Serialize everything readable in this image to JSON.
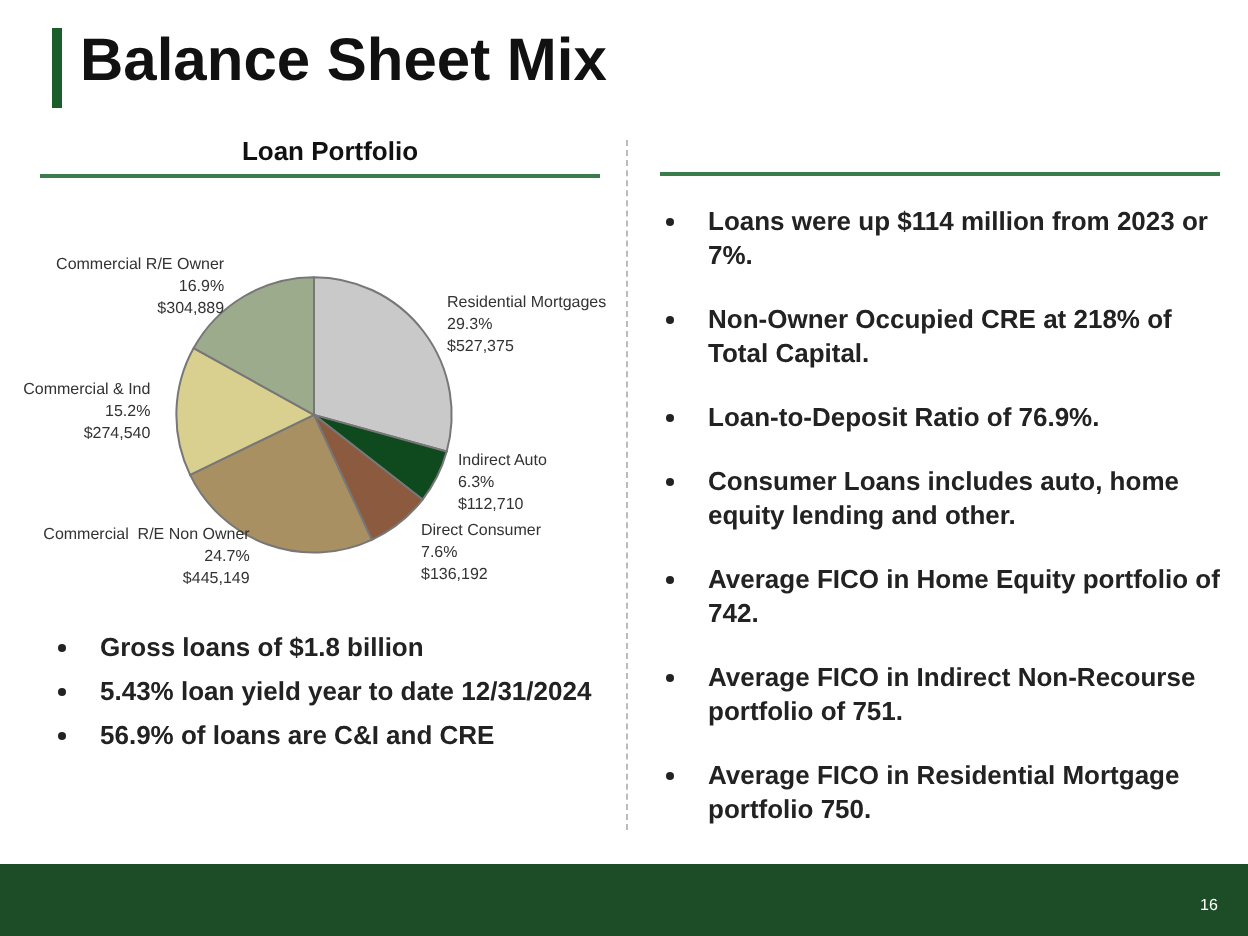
{
  "chart_data": {
    "type": "pie",
    "title": "Balance Sheet Mix",
    "subtitle": "Loan Portfolio",
    "categories": [
      "Residential Mortgages",
      "Indirect Auto",
      "Direct Consumer",
      "Commercial  R/E Non Owner",
      "Commercial & Ind",
      "Commercial R/E Owner"
    ],
    "values": [
      527375,
      112710,
      136192,
      445149,
      274540,
      304889
    ],
    "value_labels": [
      "29.3%\n$527,375",
      "6.3%\n$112,710",
      "7.6%\n$136,192",
      "24.7%\n$445,149",
      "15.2%\n$274,540",
      "16.9%\n$304,889"
    ],
    "colors": [
      "#c9c9c9",
      "#0e4a1e",
      "#8c5a3e",
      "#a89062",
      "#d9d08f",
      "#9cab8c"
    ],
    "legend": false,
    "annotations": [
      "Gross loans of $1.8 billion",
      "5.43% loan yield year to date 12/31/2024",
      "56.9% of loans are C&I and CRE",
      "Loans were up $114 million from 2023 or 7%.",
      "Non-Owner Occupied CRE at 218% of Total Capital.",
      "Loan-to-Deposit Ratio of 76.9%.",
      "Consumer Loans includes auto, home equity lending and other.",
      "Average FICO in Home Equity portfolio of 742.",
      "Average FICO in Indirect Non-Recourse portfolio of 751.",
      "Average FICO in Residential Mortgage portfolio 750.",
      "16"
    ]
  }
}
